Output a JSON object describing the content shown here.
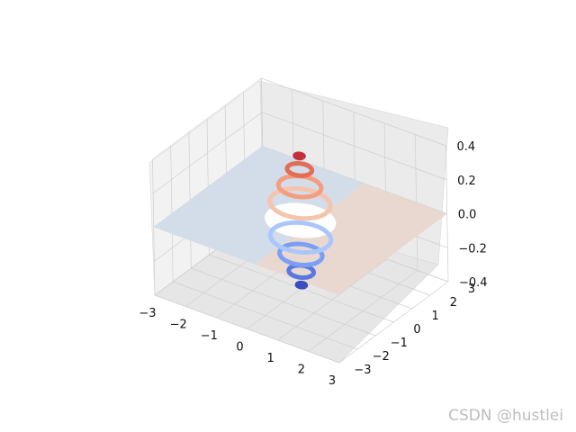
{
  "chart_data": {
    "type": "3d-contour",
    "title": "",
    "xlabel": "",
    "ylabel": "",
    "zlabel": "",
    "xlim": [
      -3,
      3
    ],
    "ylim": [
      -3,
      3
    ],
    "zlim": [
      -0.4,
      0.4
    ],
    "x_ticks": [
      "−3",
      "−2",
      "−1",
      "0",
      "1",
      "2",
      "3"
    ],
    "y_ticks": [
      "−3",
      "−2",
      "−1",
      "0",
      "1",
      "2",
      "3"
    ],
    "z_ticks": [
      "−0.4",
      "−0.2",
      "0.0",
      "0.2",
      "0.4"
    ],
    "colormap": "coolwarm",
    "grid": true,
    "plane": {
      "z": 0.0,
      "colors": [
        "#d3dde9",
        "#e8d8d0"
      ]
    },
    "contour_rings": [
      {
        "z": -0.38,
        "radius": 0.12,
        "color": "#3b4cc0"
      },
      {
        "z": -0.3,
        "radius": 0.35,
        "color": "#5977e3"
      },
      {
        "z": -0.2,
        "radius": 0.6,
        "color": "#7b9ff9"
      },
      {
        "z": -0.1,
        "radius": 0.85,
        "color": "#aac7fd"
      },
      {
        "z": 0.1,
        "radius": 0.85,
        "color": "#f5c4ac"
      },
      {
        "z": 0.2,
        "radius": 0.6,
        "color": "#f59d7e"
      },
      {
        "z": 0.3,
        "radius": 0.35,
        "color": "#e36c55"
      },
      {
        "z": 0.38,
        "radius": 0.12,
        "color": "#c3303a"
      }
    ]
  },
  "watermark": "CSDN @hustlei"
}
